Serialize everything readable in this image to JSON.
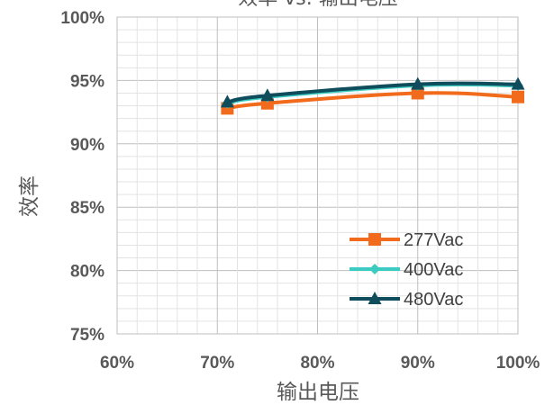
{
  "chart_data": {
    "type": "line",
    "title": "效率 vs. 输出电压",
    "xlabel": "输出电压",
    "ylabel": "效率",
    "xlim": [
      60,
      100
    ],
    "ylim": [
      75,
      100
    ],
    "x_ticks": [
      60,
      70,
      80,
      90,
      100
    ],
    "x_tick_labels": [
      "60%",
      "70%",
      "80%",
      "90%",
      "100%"
    ],
    "y_ticks": [
      75,
      80,
      85,
      90,
      95,
      100
    ],
    "y_tick_labels": [
      "75%",
      "80%",
      "85%",
      "90%",
      "95%",
      "100%"
    ],
    "x_minor_step": 2,
    "y_minor_step": 1,
    "grid": true,
    "legend_position": "bottom-right",
    "series": [
      {
        "name": "277Vac",
        "color": "#F26B1D",
        "marker": "square",
        "x": [
          71,
          75,
          90,
          100
        ],
        "y": [
          92.8,
          93.2,
          94.0,
          93.7
        ]
      },
      {
        "name": "400Vac",
        "color": "#3CCBC0",
        "marker": "diamond",
        "x": [
          71,
          75,
          90,
          100
        ],
        "y": [
          93.2,
          93.7,
          94.6,
          94.6
        ]
      },
      {
        "name": "480Vac",
        "color": "#0F4C5C",
        "marker": "triangle",
        "x": [
          71,
          75,
          90,
          100
        ],
        "y": [
          93.3,
          93.8,
          94.7,
          94.7
        ]
      }
    ]
  }
}
